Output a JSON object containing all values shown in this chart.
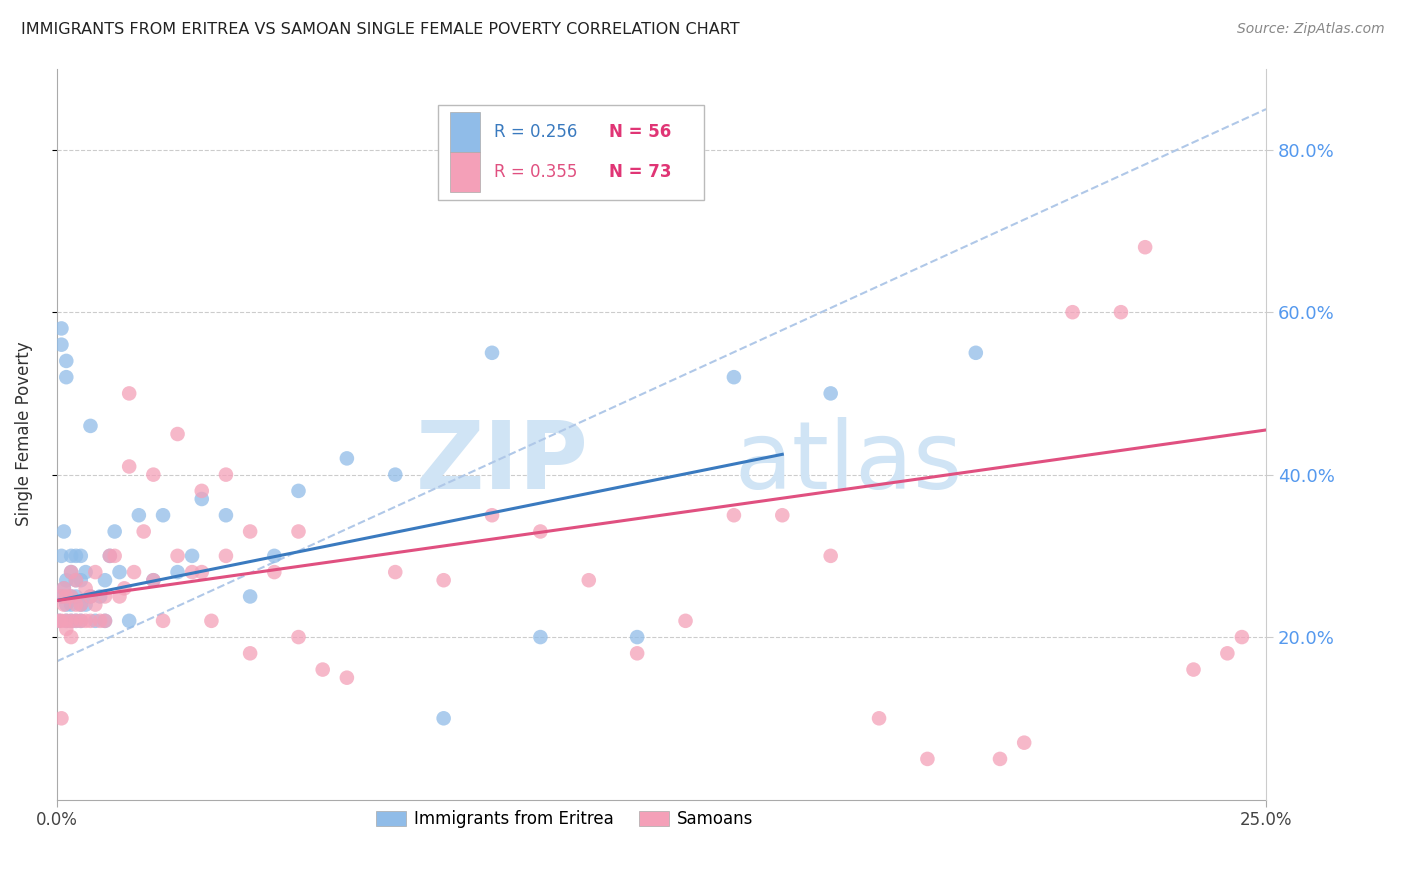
{
  "title": "IMMIGRANTS FROM ERITREA VS SAMOAN SINGLE FEMALE POVERTY CORRELATION CHART",
  "source": "Source: ZipAtlas.com",
  "ylabel": "Single Female Poverty",
  "legend_eritrea": "Immigrants from Eritrea",
  "legend_samoan": "Samoans",
  "legend_r_eritrea": "R = 0.256",
  "legend_n_eritrea": "N = 56",
  "legend_r_samoan": "R = 0.355",
  "legend_n_samoan": "N = 73",
  "color_eritrea": "#90bce8",
  "color_samoan": "#f4a0b8",
  "color_eritrea_line": "#3a7abf",
  "color_samoan_line": "#e05080",
  "color_dashed_line": "#b0c8e8",
  "color_right_ticks": "#5599ee",
  "color_grid": "#cccccc",
  "background_color": "#ffffff",
  "watermark_zip": "ZIP",
  "watermark_atlas": "atlas",
  "watermark_color": "#d0e4f5",
  "xlim": [
    0.0,
    0.25
  ],
  "ylim": [
    0.0,
    0.9
  ],
  "x_ticks": [
    0.0,
    0.25
  ],
  "x_tick_labels": [
    "0.0%",
    "25.0%"
  ],
  "y_ticks": [
    0.2,
    0.4,
    0.6,
    0.8
  ],
  "y_tick_labels": [
    "20.0%",
    "40.0%",
    "60.0%",
    "80.0%"
  ],
  "eritrea_x": [
    0.0005,
    0.001,
    0.001,
    0.001,
    0.001,
    0.0015,
    0.0015,
    0.002,
    0.002,
    0.002,
    0.002,
    0.002,
    0.003,
    0.003,
    0.003,
    0.003,
    0.003,
    0.004,
    0.004,
    0.004,
    0.004,
    0.005,
    0.005,
    0.005,
    0.005,
    0.006,
    0.006,
    0.007,
    0.007,
    0.008,
    0.009,
    0.01,
    0.01,
    0.011,
    0.012,
    0.013,
    0.015,
    0.017,
    0.02,
    0.022,
    0.025,
    0.028,
    0.03,
    0.035,
    0.04,
    0.045,
    0.05,
    0.06,
    0.07,
    0.08,
    0.09,
    0.1,
    0.12,
    0.14,
    0.16,
    0.19
  ],
  "eritrea_y": [
    0.22,
    0.25,
    0.3,
    0.56,
    0.58,
    0.26,
    0.33,
    0.22,
    0.24,
    0.27,
    0.52,
    0.54,
    0.22,
    0.25,
    0.28,
    0.3,
    0.24,
    0.22,
    0.25,
    0.27,
    0.3,
    0.22,
    0.24,
    0.27,
    0.3,
    0.24,
    0.28,
    0.25,
    0.46,
    0.22,
    0.25,
    0.22,
    0.27,
    0.3,
    0.33,
    0.28,
    0.22,
    0.35,
    0.27,
    0.35,
    0.28,
    0.3,
    0.37,
    0.35,
    0.25,
    0.3,
    0.38,
    0.42,
    0.4,
    0.1,
    0.55,
    0.2,
    0.2,
    0.52,
    0.5,
    0.55
  ],
  "samoan_x": [
    0.0005,
    0.001,
    0.001,
    0.001,
    0.0015,
    0.0015,
    0.002,
    0.002,
    0.002,
    0.003,
    0.003,
    0.003,
    0.003,
    0.004,
    0.004,
    0.004,
    0.005,
    0.005,
    0.006,
    0.006,
    0.007,
    0.007,
    0.008,
    0.008,
    0.009,
    0.01,
    0.01,
    0.011,
    0.012,
    0.013,
    0.014,
    0.015,
    0.016,
    0.018,
    0.02,
    0.022,
    0.025,
    0.028,
    0.03,
    0.032,
    0.035,
    0.04,
    0.045,
    0.05,
    0.055,
    0.06,
    0.07,
    0.08,
    0.09,
    0.1,
    0.11,
    0.12,
    0.13,
    0.14,
    0.15,
    0.16,
    0.17,
    0.18,
    0.195,
    0.2,
    0.21,
    0.22,
    0.225,
    0.235,
    0.242,
    0.245,
    0.015,
    0.02,
    0.025,
    0.03,
    0.035,
    0.04,
    0.05
  ],
  "samoan_y": [
    0.22,
    0.22,
    0.25,
    0.1,
    0.24,
    0.26,
    0.22,
    0.25,
    0.21,
    0.22,
    0.2,
    0.25,
    0.28,
    0.22,
    0.24,
    0.27,
    0.22,
    0.24,
    0.22,
    0.26,
    0.22,
    0.25,
    0.24,
    0.28,
    0.22,
    0.22,
    0.25,
    0.3,
    0.3,
    0.25,
    0.26,
    0.41,
    0.28,
    0.33,
    0.27,
    0.22,
    0.3,
    0.28,
    0.28,
    0.22,
    0.3,
    0.33,
    0.28,
    0.33,
    0.16,
    0.15,
    0.28,
    0.27,
    0.35,
    0.33,
    0.27,
    0.18,
    0.22,
    0.35,
    0.35,
    0.3,
    0.1,
    0.05,
    0.05,
    0.07,
    0.6,
    0.6,
    0.68,
    0.16,
    0.18,
    0.2,
    0.5,
    0.4,
    0.45,
    0.38,
    0.4,
    0.18,
    0.2
  ],
  "eritrea_line_x": [
    0.0,
    0.15
  ],
  "eritrea_line_y": [
    0.245,
    0.425
  ],
  "samoan_line_x": [
    0.0,
    0.25
  ],
  "samoan_line_y": [
    0.245,
    0.455
  ],
  "dashed_line_x": [
    0.0,
    0.25
  ],
  "dashed_line_y": [
    0.17,
    0.85
  ]
}
